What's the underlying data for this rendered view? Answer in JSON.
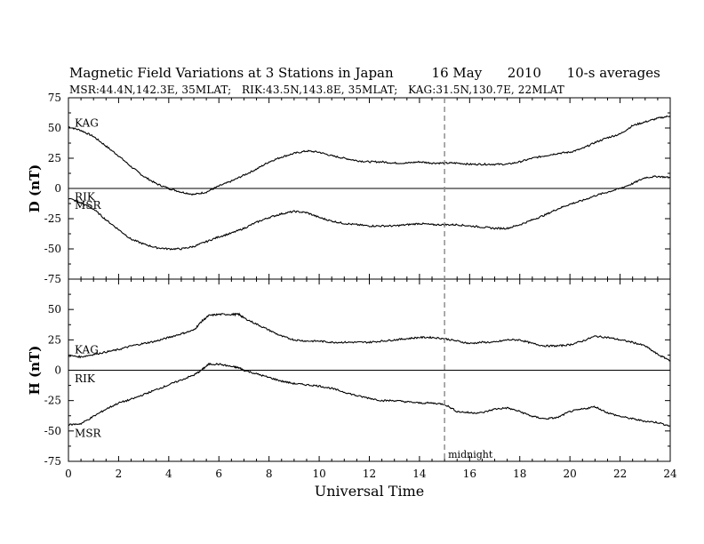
{
  "header": {
    "title": "Magnetic Field Variations at 3 Stations in Japan         16 May      2010      10-s averages",
    "subtitle": "MSR:44.4N,142.3E, 35MLAT;   RIK:43.5N,143.8E, 35MLAT;   KAG:31.5N,130.7E, 22MLAT"
  },
  "chart_data": {
    "type": "line",
    "xlabel": "Universal Time",
    "xlim": [
      0,
      24
    ],
    "x_ticks": [
      0,
      2,
      4,
      6,
      8,
      10,
      12,
      14,
      16,
      18,
      20,
      22,
      24
    ],
    "annotation": {
      "text": "midnight",
      "x": 15,
      "style": "dashed vertical line"
    },
    "panels": [
      {
        "ylabel": "D (nT)",
        "ylim": [
          -75,
          75
        ],
        "y_ticks": [
          75,
          50,
          25,
          0,
          -25,
          -50,
          -75
        ],
        "zero_line": true,
        "series": [
          {
            "name": "KAG",
            "color": "#000000",
            "x": [
              0,
              0.5,
              1,
              1.5,
              2,
              2.5,
              3,
              3.5,
              4,
              4.5,
              5,
              5.5,
              6,
              6.5,
              7,
              7.5,
              8,
              8.5,
              9,
              9.5,
              10,
              10.5,
              11,
              11.5,
              12,
              12.5,
              13,
              13.5,
              14,
              14.5,
              15,
              15.5,
              16,
              16.5,
              17,
              17.5,
              18,
              18.5,
              19,
              19.5,
              20,
              20.5,
              21,
              21.5,
              22,
              22.5,
              23,
              23.5,
              24
            ],
            "values": [
              51,
              48,
              43,
              35,
              27,
              18,
              10,
              4,
              0,
              -3,
              -5,
              -3,
              2,
              6,
              11,
              16,
              22,
              26,
              29,
              31,
              30,
              27,
              25,
              23,
              22,
              22,
              21,
              21,
              22,
              21,
              21,
              21,
              20,
              20,
              20,
              20,
              22,
              25,
              27,
              29,
              30,
              33,
              38,
              42,
              45,
              52,
              55,
              58,
              60
            ]
          },
          {
            "name": "RIK",
            "color": "#000000",
            "x": [
              0,
              0.5,
              1,
              1.5,
              2,
              2.5,
              3,
              3.5,
              4,
              4.5,
              5,
              5.5,
              6,
              6.5,
              7,
              7.5,
              8,
              8.5,
              9,
              9.5,
              10,
              10.5,
              11,
              11.5,
              12,
              12.5,
              13,
              13.5,
              14,
              14.5,
              15,
              15.5,
              16,
              16.5,
              17,
              17.5,
              18,
              18.5,
              19,
              19.5,
              20,
              20.5,
              21,
              21.5,
              22,
              22.5,
              23,
              23.5,
              24
            ],
            "values": [
              -8,
              -12,
              -17,
              -26,
              -34,
              -42,
              -46,
              -49,
              -50,
              -50,
              -48,
              -44,
              -40,
              -37,
              -33,
              -28,
              -24,
              -21,
              -19,
              -20,
              -24,
              -27,
              -29,
              -30,
              -31,
              -31,
              -31,
              -30,
              -29,
              -30,
              -30,
              -30,
              -31,
              -32,
              -33,
              -33,
              -30,
              -26,
              -22,
              -17,
              -13,
              -10,
              -6,
              -3,
              0,
              4,
              9,
              10,
              9
            ]
          }
        ],
        "labels": [
          {
            "text": "KAG",
            "x": 0.25,
            "y": 54
          },
          {
            "text": "RIK",
            "x": 0.25,
            "y": -7
          },
          {
            "text": "MSR",
            "x": 0.25,
            "y": -14
          }
        ]
      },
      {
        "ylabel": "H (nT)",
        "ylim": [
          -75,
          75
        ],
        "y_ticks": [
          75,
          50,
          25,
          0,
          -25,
          -50,
          -75
        ],
        "zero_line": true,
        "series": [
          {
            "name": "KAG",
            "color": "#000000",
            "x": [
              0,
              0.5,
              1,
              1.5,
              2,
              2.5,
              3,
              3.5,
              4,
              4.5,
              5,
              5.3,
              5.6,
              6,
              6.5,
              6.8,
              7,
              7.5,
              8,
              8.5,
              9,
              9.5,
              10,
              10.5,
              11,
              11.5,
              12,
              12.5,
              13,
              13.5,
              14,
              14.5,
              15,
              15.5,
              16,
              16.5,
              17,
              17.5,
              18,
              18.5,
              19,
              19.5,
              20,
              20.5,
              21,
              21.5,
              22,
              22.5,
              23,
              23.5,
              24
            ],
            "values": [
              12,
              11,
              13,
              15,
              17,
              20,
              22,
              24,
              27,
              30,
              33,
              40,
              45,
              46,
              46,
              46,
              43,
              38,
              33,
              28,
              25,
              24,
              24,
              23,
              23,
              23,
              23,
              24,
              25,
              26,
              27,
              27,
              26,
              24,
              22,
              23,
              23,
              25,
              25,
              22,
              20,
              20,
              21,
              24,
              28,
              27,
              25,
              23,
              20,
              13,
              8
            ]
          },
          {
            "name": "MSR",
            "color": "#000000",
            "x": [
              0,
              0.5,
              1,
              1.5,
              2,
              2.5,
              3,
              3.5,
              4,
              4.5,
              5,
              5.3,
              5.6,
              6,
              6.5,
              6.8,
              7,
              7.5,
              8,
              8.5,
              9,
              9.5,
              10,
              10.5,
              11,
              11.5,
              12,
              12.5,
              13,
              13.5,
              14,
              14.5,
              15,
              15.5,
              16,
              16.5,
              17,
              17.5,
              18,
              18.5,
              19,
              19.5,
              20,
              20.5,
              21,
              21.5,
              22,
              22.5,
              23,
              23.5,
              24
            ],
            "values": [
              -45,
              -44,
              -38,
              -32,
              -27,
              -24,
              -20,
              -16,
              -12,
              -8,
              -4,
              0,
              5,
              5,
              3,
              2,
              0,
              -3,
              -6,
              -9,
              -11,
              -12,
              -13,
              -15,
              -18,
              -21,
              -23,
              -25,
              -25,
              -26,
              -27,
              -27,
              -28,
              -34,
              -35,
              -35,
              -32,
              -31,
              -34,
              -38,
              -40,
              -39,
              -34,
              -32,
              -30,
              -35,
              -38,
              -40,
              -42,
              -43,
              -46
            ]
          }
        ],
        "labels": [
          {
            "text": "KAG",
            "x": 0.25,
            "y": 17
          },
          {
            "text": "RIK",
            "x": 0.25,
            "y": -7
          },
          {
            "text": "MSR",
            "x": 0.25,
            "y": -52
          }
        ]
      }
    ]
  }
}
